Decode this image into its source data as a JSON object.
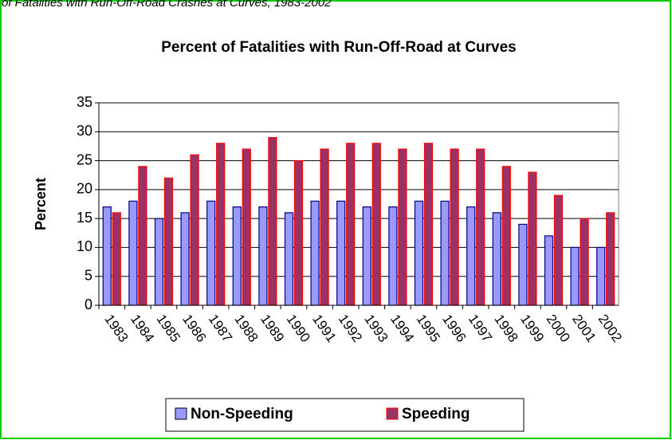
{
  "caption": "of Fatalities with Run-Off-Road Crashes at Curves, 1983-2002",
  "chart_data": {
    "type": "bar",
    "title": "Percent of Fatalities with Run-Off-Road at Curves",
    "y_label": "Percent",
    "categories": [
      "1983",
      "1984",
      "1985",
      "1986",
      "1987",
      "1988",
      "1989",
      "1990",
      "1991",
      "1992",
      "1993",
      "1994",
      "1995",
      "1996",
      "1997",
      "1998",
      "1999",
      "2000",
      "2001",
      "2002"
    ],
    "series": [
      {
        "name": "Non-Speeding",
        "color": "#9999ff",
        "values": [
          17,
          18,
          15,
          16,
          18,
          17,
          17,
          16,
          18,
          18,
          17,
          17,
          18,
          18,
          17,
          16,
          14,
          12,
          10,
          10
        ]
      },
      {
        "name": "Speeding",
        "color": "#993366",
        "values": [
          16,
          24,
          22,
          26,
          28,
          27,
          29,
          25,
          27,
          28,
          28,
          27,
          28,
          27,
          27,
          24,
          23,
          19,
          15,
          16
        ]
      }
    ],
    "ylim": [
      0,
      35
    ],
    "yticks": [
      0,
      5,
      10,
      15,
      20,
      25,
      30,
      35
    ],
    "grid": true,
    "legend": "bottom"
  }
}
